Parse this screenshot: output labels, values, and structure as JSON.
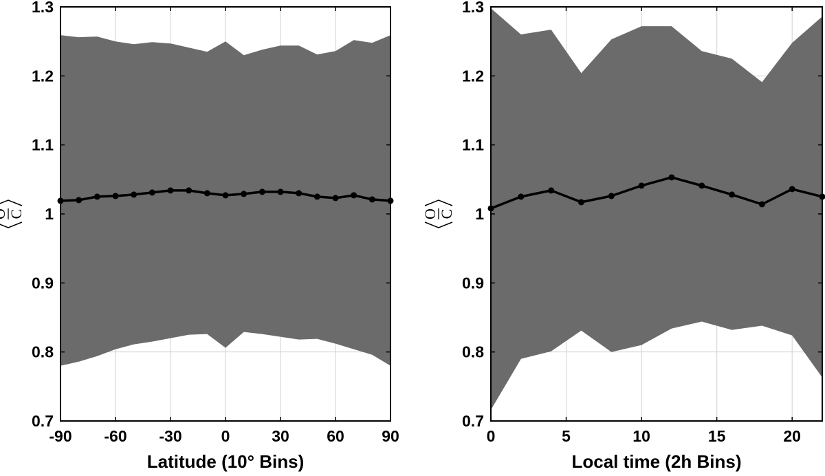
{
  "chart_data": [
    {
      "type": "line",
      "xlabel": "Latitude (10° Bins)",
      "ylabel_numerator": "O",
      "ylabel_denominator": "C",
      "xlim": [
        -90,
        90
      ],
      "ylim": [
        0.7,
        1.3
      ],
      "xticks": [
        -90,
        -60,
        -30,
        0,
        30,
        60,
        90
      ],
      "yticks": [
        0.7,
        0.8,
        0.9,
        1,
        1.1,
        1.2,
        1.3
      ],
      "xtick_labels": [
        "-90",
        "-60",
        "-30",
        "0",
        "30",
        "60",
        "90"
      ],
      "ytick_labels": [
        "0.7",
        "0.8",
        "0.9",
        "1",
        "1.1",
        "1.2",
        "1.3"
      ],
      "grid": true,
      "x": [
        -90,
        -80,
        -70,
        -60,
        -50,
        -40,
        -30,
        -20,
        -10,
        0,
        10,
        20,
        30,
        40,
        50,
        60,
        70,
        80,
        90
      ],
      "mean": [
        1.019,
        1.02,
        1.025,
        1.026,
        1.028,
        1.031,
        1.034,
        1.034,
        1.03,
        1.027,
        1.029,
        1.032,
        1.032,
        1.03,
        1.025,
        1.023,
        1.027,
        1.021,
        1.019
      ],
      "band_upper": [
        1.259,
        1.256,
        1.257,
        1.25,
        1.246,
        1.249,
        1.247,
        1.241,
        1.235,
        1.25,
        1.23,
        1.238,
        1.244,
        1.244,
        1.231,
        1.236,
        1.252,
        1.248,
        1.259
      ],
      "band_lower": [
        0.78,
        0.786,
        0.794,
        0.804,
        0.811,
        0.815,
        0.82,
        0.825,
        0.826,
        0.806,
        0.829,
        0.826,
        0.822,
        0.818,
        0.819,
        0.812,
        0.804,
        0.796,
        0.78
      ],
      "colors": {
        "band": "#6b6b6b",
        "line": "#000000",
        "grid": "#d0d0d0"
      }
    },
    {
      "type": "line",
      "xlabel": "Local time (2h Bins)",
      "ylabel_numerator": "O",
      "ylabel_denominator": "C",
      "xlim": [
        0,
        22
      ],
      "ylim": [
        0.7,
        1.3
      ],
      "xticks": [
        0,
        5,
        10,
        15,
        20
      ],
      "yticks": [
        0.7,
        0.8,
        0.9,
        1,
        1.1,
        1.2,
        1.3
      ],
      "xtick_labels": [
        "0",
        "5",
        "10",
        "15",
        "20"
      ],
      "ytick_labels": [
        "0.7",
        "0.8",
        "0.9",
        "1",
        "1.1",
        "1.2",
        "1.3"
      ],
      "grid": true,
      "x": [
        0,
        2,
        4,
        6,
        8,
        10,
        12,
        14,
        16,
        18,
        20,
        22
      ],
      "mean": [
        1.008,
        1.025,
        1.034,
        1.017,
        1.026,
        1.041,
        1.053,
        1.041,
        1.028,
        1.014,
        1.036,
        1.025
      ],
      "band_upper": [
        1.298,
        1.26,
        1.267,
        1.204,
        1.253,
        1.272,
        1.272,
        1.236,
        1.225,
        1.191,
        1.248,
        1.286
      ],
      "band_lower": [
        0.716,
        0.79,
        0.801,
        0.831,
        0.8,
        0.81,
        0.834,
        0.844,
        0.832,
        0.838,
        0.824,
        0.763
      ],
      "colors": {
        "band": "#6b6b6b",
        "line": "#000000",
        "grid": "#d0d0d0"
      }
    }
  ]
}
